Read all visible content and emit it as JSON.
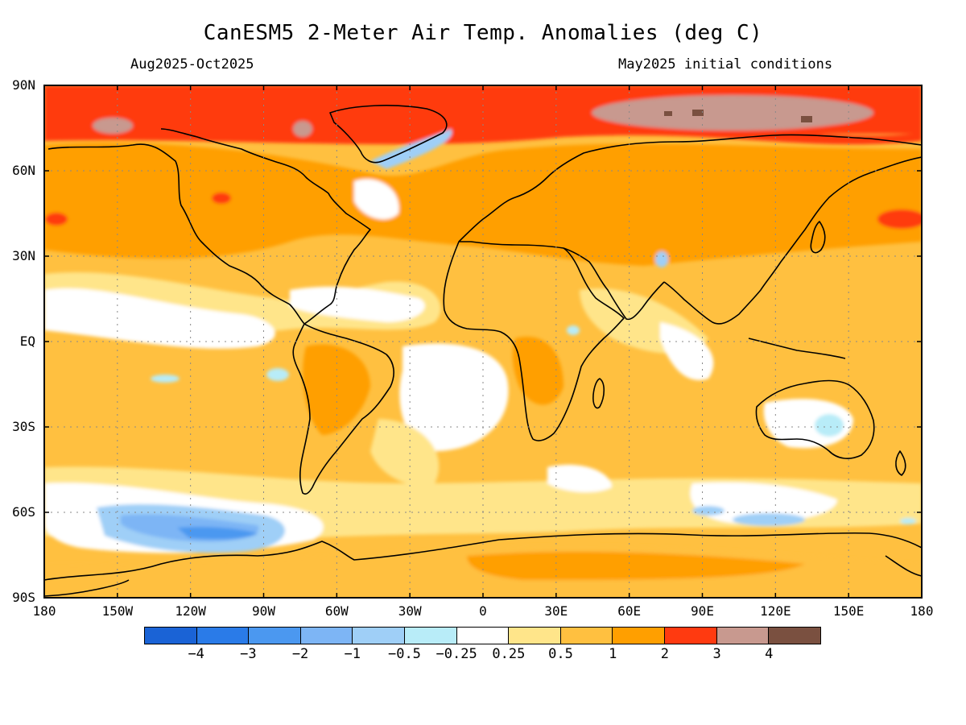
{
  "header": {
    "title": "CanESM5 2-Meter Air Temp. Anomalies (deg C)",
    "period": "Aug2025-Oct2025",
    "init": "May2025 initial conditions"
  },
  "axes": {
    "lat_labels": [
      "90N",
      "60N",
      "30N",
      "EQ",
      "30S",
      "60S",
      "90S"
    ],
    "lon_labels": [
      "180",
      "150W",
      "120W",
      "90W",
      "60W",
      "30W",
      "0",
      "30E",
      "60E",
      "90E",
      "120E",
      "150E",
      "180"
    ]
  },
  "legend": {
    "colors": [
      "#1a63d6",
      "#2a7be8",
      "#4b98f0",
      "#7db5f5",
      "#9fcff7",
      "#b8ecf8",
      "#ffffff",
      "#ffe58a",
      "#ffc040",
      "#ff9f00",
      "#ff3a10",
      "#c8998f",
      "#7a5040"
    ],
    "labels": [
      "-4",
      "-3",
      "-2",
      "-1",
      "-0.5",
      "-0.25",
      "0.25",
      "0.5",
      "1",
      "2",
      "3",
      "4"
    ]
  },
  "chart_data": {
    "type": "heatmap",
    "title": "CanESM5 2-Meter Air Temp. Anomalies (deg C)",
    "subtitle_left": "Aug2025-Oct2025",
    "subtitle_right": "May2025 initial conditions",
    "xlim": [
      -180,
      180
    ],
    "ylim": [
      -90,
      90
    ],
    "grid": true,
    "levels": [
      -4,
      -3,
      -2,
      -1,
      -0.5,
      -0.25,
      0.25,
      0.5,
      1,
      2,
      3,
      4
    ]
  }
}
